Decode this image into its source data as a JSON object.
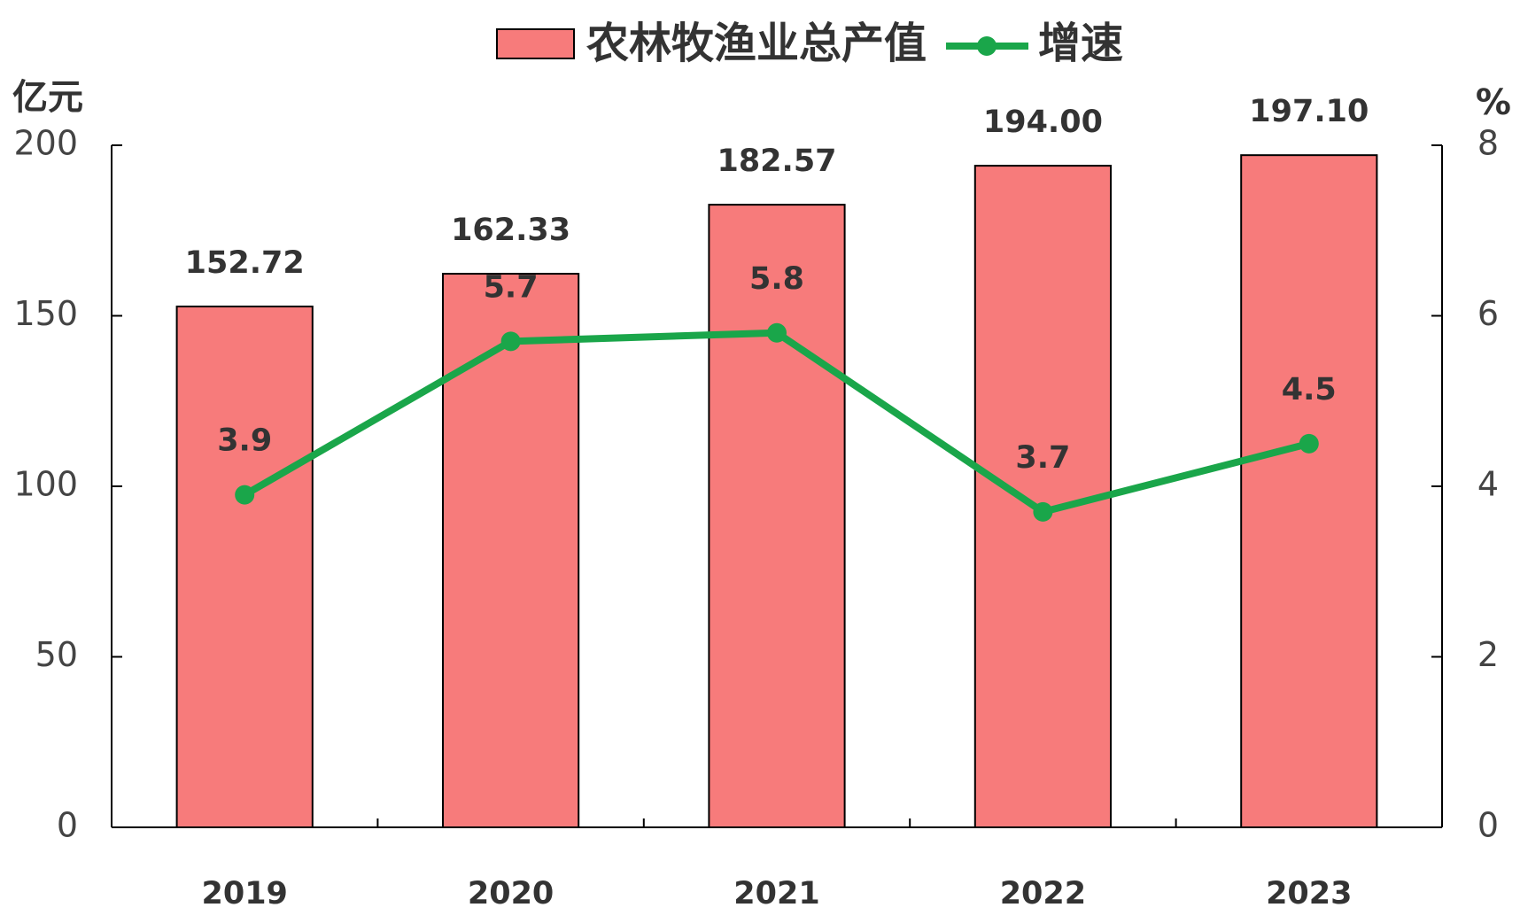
{
  "chart_data": {
    "type": "bar",
    "y_label": "亿元",
    "y2_label": "%",
    "categories": [
      "2019",
      "2020",
      "2021",
      "2022",
      "2023"
    ],
    "series": [
      {
        "name": "农林牧渔业总产值",
        "type": "bar",
        "color": "#f77b7b",
        "values": [
          152.72,
          162.33,
          182.57,
          194,
          197.1
        ],
        "value_labels": [
          "152.72",
          "162.33",
          "182.57",
          "194.00",
          "197.10"
        ]
      },
      {
        "name": "增速",
        "type": "line",
        "axis": "y2",
        "color": "#1aa64a",
        "values": [
          3.9,
          5.7,
          5.8,
          3.7,
          4.5
        ]
      }
    ],
    "ylim": [
      0,
      200
    ],
    "yticks": [
      0,
      50,
      100,
      150,
      200
    ],
    "y2lim": [
      0,
      8
    ],
    "y2ticks": [
      0,
      2,
      4,
      6,
      8
    ]
  }
}
